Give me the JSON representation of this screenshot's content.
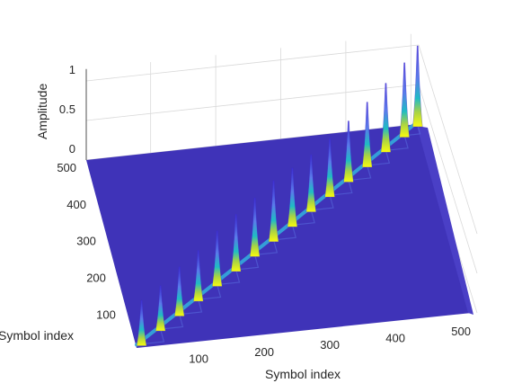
{
  "chart_data": {
    "type": "surface-3d",
    "title": "",
    "x_axis": {
      "label": "Symbol index",
      "ticks": [
        100,
        200,
        300,
        400,
        500
      ],
      "range": [
        1,
        512
      ]
    },
    "y_axis": {
      "label": "Symbol index",
      "ticks": [
        100,
        200,
        300,
        400,
        500
      ],
      "range": [
        1,
        512
      ]
    },
    "z_axis": {
      "label": "Amplitude",
      "ticks": [
        "0",
        "0.5",
        "1"
      ],
      "range": [
        0,
        1
      ]
    },
    "grid": true,
    "colormap": "parula",
    "peaks": [
      {
        "x": 10,
        "y": 10,
        "z": 0.55
      },
      {
        "x": 44,
        "y": 44,
        "z": 0.55
      },
      {
        "x": 78,
        "y": 78,
        "z": 0.6
      },
      {
        "x": 112,
        "y": 112,
        "z": 0.62
      },
      {
        "x": 146,
        "y": 146,
        "z": 0.68
      },
      {
        "x": 180,
        "y": 180,
        "z": 0.7
      },
      {
        "x": 214,
        "y": 214,
        "z": 0.72
      },
      {
        "x": 248,
        "y": 248,
        "z": 0.75
      },
      {
        "x": 282,
        "y": 282,
        "z": 0.72
      },
      {
        "x": 316,
        "y": 316,
        "z": 0.7
      },
      {
        "x": 350,
        "y": 350,
        "z": 0.72
      },
      {
        "x": 384,
        "y": 384,
        "z": 0.75
      },
      {
        "x": 418,
        "y": 418,
        "z": 0.8
      },
      {
        "x": 452,
        "y": 452,
        "z": 0.85
      },
      {
        "x": 486,
        "y": 486,
        "z": 0.92
      },
      {
        "x": 510,
        "y": 510,
        "z": 1.0
      }
    ]
  }
}
